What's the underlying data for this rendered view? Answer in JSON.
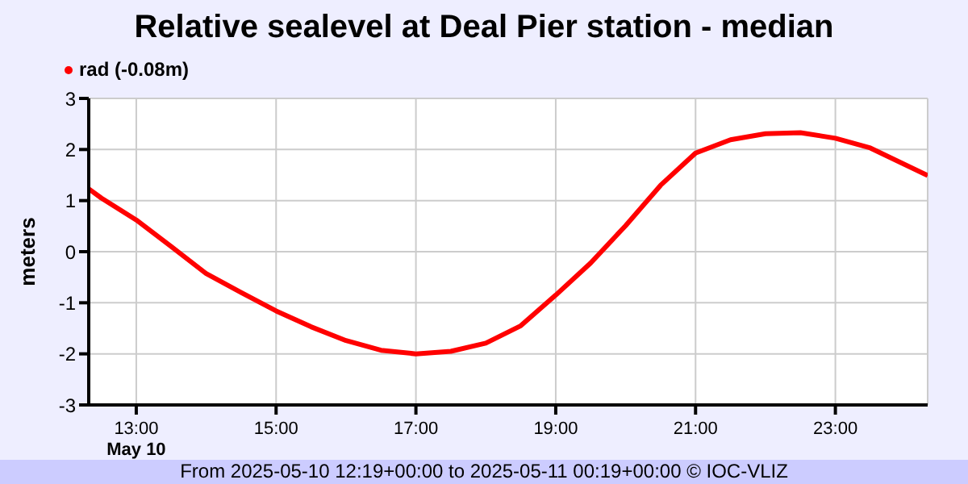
{
  "chart_data": {
    "type": "line",
    "title": "Relative sealevel at Deal Pier station - median",
    "ylabel": "meters",
    "x": [
      12.32,
      12.5,
      13,
      13.5,
      14,
      14.5,
      15,
      15.5,
      16,
      16.5,
      17,
      17.5,
      18,
      18.5,
      19,
      19.5,
      20,
      20.5,
      21,
      21.5,
      22,
      22.5,
      23,
      23.5,
      24.32
    ],
    "series": [
      {
        "name": "rad (-0.08m)",
        "color": "#ff0000",
        "values": [
          1.23,
          1.05,
          0.62,
          0.1,
          -0.43,
          -0.8,
          -1.16,
          -1.47,
          -1.74,
          -1.93,
          -2.0,
          -1.95,
          -1.79,
          -1.45,
          -0.85,
          -0.22,
          0.51,
          1.3,
          1.93,
          2.19,
          2.31,
          2.33,
          2.22,
          2.03,
          1.49
        ]
      }
    ],
    "xlim": [
      12.32,
      24.32
    ],
    "xticks": [
      {
        "value": 13,
        "label": "13:00\nMay 10"
      },
      {
        "value": 15,
        "label": "15:00"
      },
      {
        "value": 17,
        "label": "17:00"
      },
      {
        "value": 19,
        "label": "19:00"
      },
      {
        "value": 21,
        "label": "21:00"
      },
      {
        "value": 23,
        "label": "23:00"
      }
    ],
    "ylim": [
      -3,
      3
    ],
    "yticks": [
      -3,
      -2,
      -1,
      0,
      1,
      2,
      3
    ],
    "grid": true,
    "legend": "top left",
    "marker": "none",
    "line_style": "solid",
    "annotations": [
      "From 2025-05-10 12:19+00:00 to 2025-05-11 00:19+00:00 © IOC-VLIZ"
    ]
  }
}
